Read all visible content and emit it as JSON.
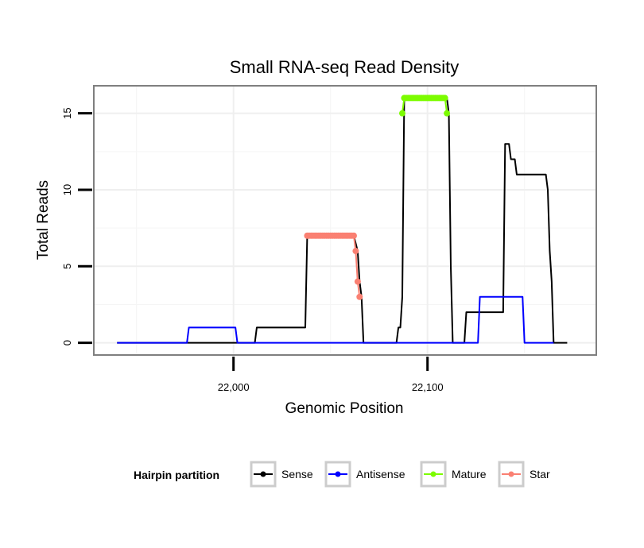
{
  "chart_data": {
    "type": "line",
    "title": "Small RNA-seq Read Density",
    "xlabel": "Genomic Position",
    "ylabel": "Total Reads",
    "xlim": [
      21928,
      22187
    ],
    "ylim": [
      -0.8,
      16.8
    ],
    "x_ticks": [
      22000,
      22100
    ],
    "x_tick_labels": [
      "22,000",
      "22,100"
    ],
    "y_ticks": [
      0,
      5,
      10,
      15
    ],
    "y_tick_labels": [
      "0",
      "5",
      "10",
      "15"
    ],
    "grid": true,
    "legend": {
      "title": "Hairpin partition",
      "position": "bottom",
      "entries": [
        {
          "name": "Sense",
          "color": "#000000"
        },
        {
          "name": "Antisense",
          "color": "#0000ff"
        },
        {
          "name": "Mature",
          "color": "#7cfc00"
        },
        {
          "name": "Star",
          "color": "#fa8072"
        }
      ]
    },
    "series": [
      {
        "name": "Sense",
        "color": "#000000",
        "x": [
          21940,
          22011,
          22012,
          22037,
          22038,
          22062,
          22064,
          22065,
          22066,
          22067,
          22084,
          22085,
          22086,
          22087,
          22088,
          22110,
          22111,
          22112,
          22113,
          22119,
          22120,
          22139,
          22140,
          22142,
          22143,
          22145,
          22146,
          22161,
          22162,
          22163,
          22164,
          22165,
          22172
        ],
        "y": [
          0,
          0,
          1,
          1,
          7,
          7,
          6,
          4,
          3,
          0,
          0,
          1,
          1,
          3,
          16,
          16,
          15,
          5,
          0,
          0,
          2,
          2,
          13,
          13,
          12,
          12,
          11,
          11,
          10,
          6,
          4,
          0,
          0
        ]
      },
      {
        "name": "Antisense",
        "color": "#0000ff",
        "x": [
          21940,
          21976,
          21977,
          22001,
          22002,
          22126,
          22127,
          22149,
          22150,
          22165
        ],
        "y": [
          0,
          0,
          1,
          1,
          0,
          0,
          3,
          3,
          0,
          0
        ]
      },
      {
        "name": "Mature",
        "color": "#7cfc00",
        "x": [
          22087,
          22088,
          22089,
          22090,
          22091,
          22092,
          22093,
          22094,
          22095,
          22096,
          22097,
          22098,
          22099,
          22100,
          22101,
          22102,
          22103,
          22104,
          22105,
          22106,
          22107,
          22108,
          22109,
          22110
        ],
        "y": [
          15,
          16,
          16,
          16,
          16,
          16,
          16,
          16,
          16,
          16,
          16,
          16,
          16,
          16,
          16,
          16,
          16,
          16,
          16,
          16,
          16,
          16,
          16,
          15
        ]
      },
      {
        "name": "Star",
        "color": "#fa8072",
        "x": [
          22038,
          22039,
          22040,
          22041,
          22042,
          22043,
          22044,
          22045,
          22046,
          22047,
          22048,
          22049,
          22050,
          22051,
          22052,
          22053,
          22054,
          22055,
          22056,
          22057,
          22058,
          22059,
          22060,
          22061,
          22062,
          22063,
          22064,
          22065
        ],
        "y": [
          7,
          7,
          7,
          7,
          7,
          7,
          7,
          7,
          7,
          7,
          7,
          7,
          7,
          7,
          7,
          7,
          7,
          7,
          7,
          7,
          7,
          7,
          7,
          7,
          7,
          6,
          4,
          3
        ]
      }
    ]
  }
}
